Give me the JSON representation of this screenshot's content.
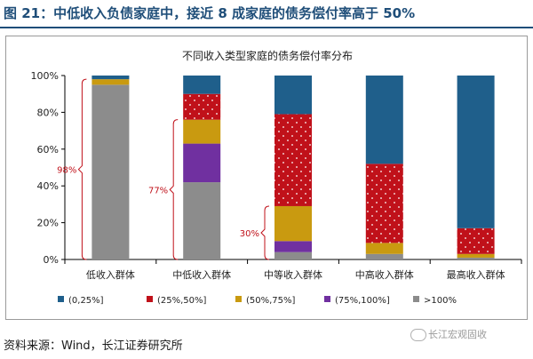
{
  "figure": {
    "title": "图 21：中低收入负债家庭中，接近 8 成家庭的债务偿付率高于 50%",
    "source": "资料来源：Wind，长江证券研究所",
    "watermark": "长江宏观固收"
  },
  "colors": {
    "0-25": "#1f5f8b",
    "25-50": "#c0111a",
    "50-75": "#c99a10",
    "75-100": "#7030a0",
    "gt100": "#8c8c8c",
    "annotation": "#c0111a"
  },
  "chart_data": {
    "type": "bar",
    "stacked": true,
    "title": "不同收入类型家庭的债务偿付率分布",
    "xlabel": "",
    "ylabel": "",
    "ylim": [
      0,
      100
    ],
    "y_ticks": [
      "0%",
      "20%",
      "40%",
      "60%",
      "80%",
      "100%"
    ],
    "categories": [
      "低收入群体",
      "中低收入群体",
      "中等收入群体",
      "中高收入群体",
      "最高收入群体"
    ],
    "series": [
      {
        "name": ">100%",
        "key": "gt100",
        "values": [
          95,
          42,
          4,
          3,
          1
        ]
      },
      {
        "name": "(75%,100%]",
        "key": "75-100",
        "values": [
          0,
          21,
          6,
          0,
          0
        ]
      },
      {
        "name": "(50%,75%]",
        "key": "50-75",
        "values": [
          3,
          13,
          19,
          6,
          2
        ]
      },
      {
        "name": "(25%,50%]",
        "key": "25-50",
        "values": [
          0,
          14,
          50,
          43,
          14
        ]
      },
      {
        "name": "(0,25%]",
        "key": "0-25",
        "values": [
          2,
          10,
          21,
          48,
          83
        ]
      }
    ],
    "legend_order": [
      "(0,25%]",
      "(25%,50%]",
      "(50%,75%]",
      "(75%,100%]",
      ">100%"
    ],
    "legend_position": "bottom",
    "annotations": [
      {
        "label": "98%",
        "category": 0,
        "from": 0,
        "to": 98
      },
      {
        "label": "77%",
        "category": 1,
        "from": 0,
        "to": 76
      },
      {
        "label": "30%",
        "category": 2,
        "from": 0,
        "to": 29
      }
    ]
  }
}
